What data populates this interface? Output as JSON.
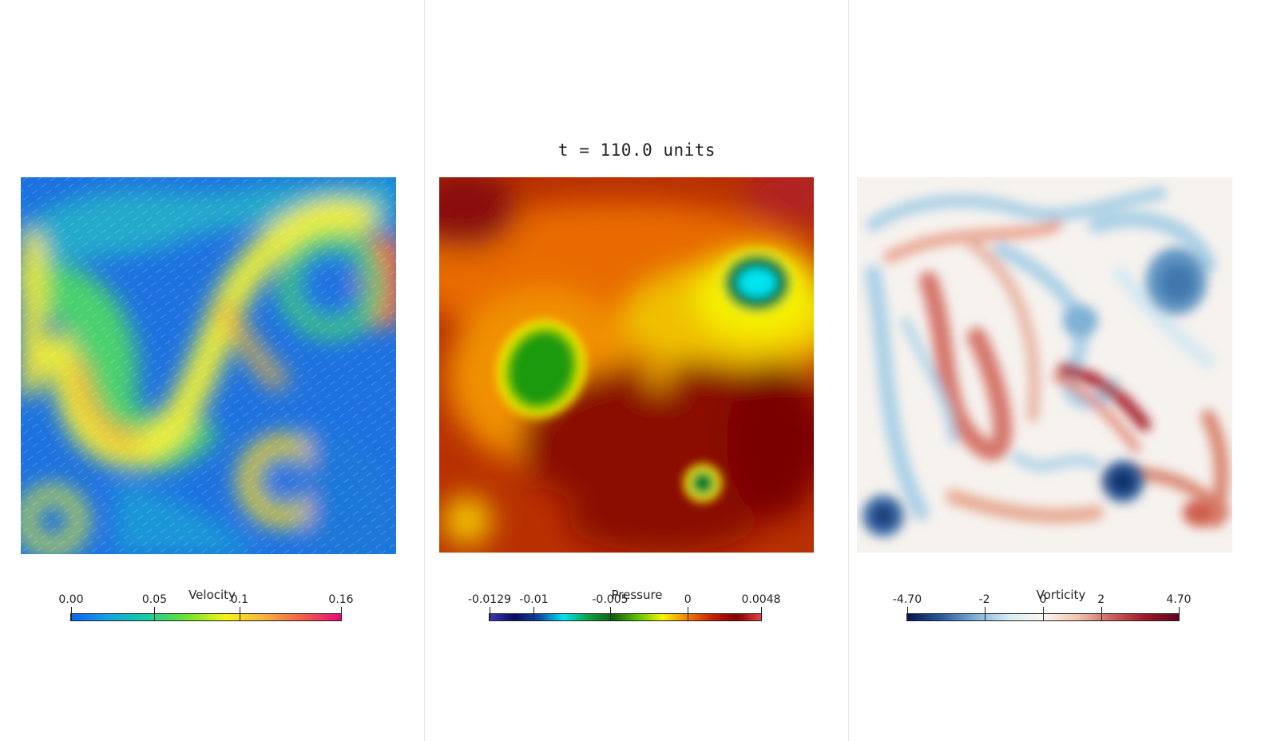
{
  "title": "t = 110.0 units",
  "panels": [
    {
      "colorbar": {
        "title": "Velocity",
        "ticks": [
          {
            "label": "0.00",
            "frac": 0.0
          },
          {
            "label": "0.05",
            "frac": 0.309
          },
          {
            "label": "0.1",
            "frac": 0.624
          },
          {
            "label": "0.16",
            "frac": 1.0
          }
        ],
        "gradient": [
          "#0d64f0",
          "#12a6e0",
          "#14cfa0",
          "#6fe22b",
          "#f5f516",
          "#f7b23a",
          "#f25f4a",
          "#e7097a"
        ]
      }
    },
    {
      "colorbar": {
        "title": "Pressure",
        "ticks": [
          {
            "label": "-0.0129",
            "frac": 0.0
          },
          {
            "label": "-0.01",
            "frac": 0.163
          },
          {
            "label": "-0.005",
            "frac": 0.444
          },
          {
            "label": "0",
            "frac": 0.73
          },
          {
            "label": "0.0048",
            "frac": 1.0
          }
        ],
        "gradient": [
          "#3b3bb4",
          "#0a0a60",
          "#0a4aa0",
          "#00e4f0",
          "#10a040",
          "#106010",
          "#60c000",
          "#f5f500",
          "#f08000",
          "#c82000",
          "#800000",
          "#e84040"
        ]
      }
    },
    {
      "colorbar": {
        "title": "Vorticity",
        "ticks": [
          {
            "label": "-4.70",
            "frac": 0.0
          },
          {
            "label": "-2",
            "frac": 0.284
          },
          {
            "label": "0",
            "frac": 0.5
          },
          {
            "label": "2",
            "frac": 0.714
          },
          {
            "label": "4.70",
            "frac": 1.0
          }
        ],
        "gradient": [
          "#05144a",
          "#2a5a9a",
          "#7fb0d6",
          "#d8ecf4",
          "#fbf7f0",
          "#f2c6b0",
          "#cd6460",
          "#9e1a2a",
          "#5e0420"
        ]
      }
    }
  ]
}
